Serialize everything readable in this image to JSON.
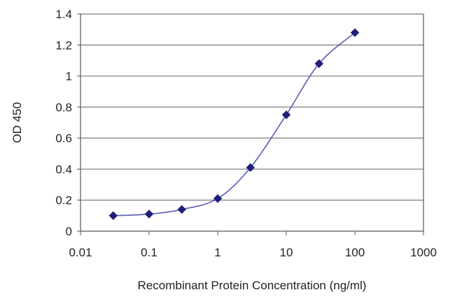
{
  "chart_data": {
    "type": "line",
    "title": "",
    "xlabel": "Recombinant Protein Concentration (ng/ml)",
    "ylabel": "OD 450",
    "xscale": "log",
    "xlim": [
      0.01,
      1000
    ],
    "ylim": [
      0,
      1.4
    ],
    "x_ticks": [
      0.01,
      0.1,
      1,
      10,
      100,
      1000
    ],
    "x_tick_labels": [
      "0.01",
      "0.1",
      "1",
      "10",
      "100",
      "1000"
    ],
    "y_ticks": [
      0,
      0.2,
      0.4,
      0.6,
      0.8,
      1,
      1.2,
      1.4
    ],
    "y_tick_labels": [
      "0",
      "0.2",
      "0.4",
      "0.6",
      "0.8",
      "1",
      "1.2",
      "1.4"
    ],
    "grid": "horizontal",
    "legend": "none",
    "series": [
      {
        "x": [
          0.03,
          0.1,
          0.3,
          1,
          3,
          10,
          30,
          100
        ],
        "y": [
          0.1,
          0.11,
          0.14,
          0.21,
          0.41,
          0.75,
          1.08,
          1.28
        ],
        "smooth": true,
        "marker": "diamond"
      }
    ],
    "colors": {
      "series": "#1f1f7a",
      "line": "#5a5ab4",
      "grid": "#7a7a7a",
      "axis": "#555555"
    }
  }
}
